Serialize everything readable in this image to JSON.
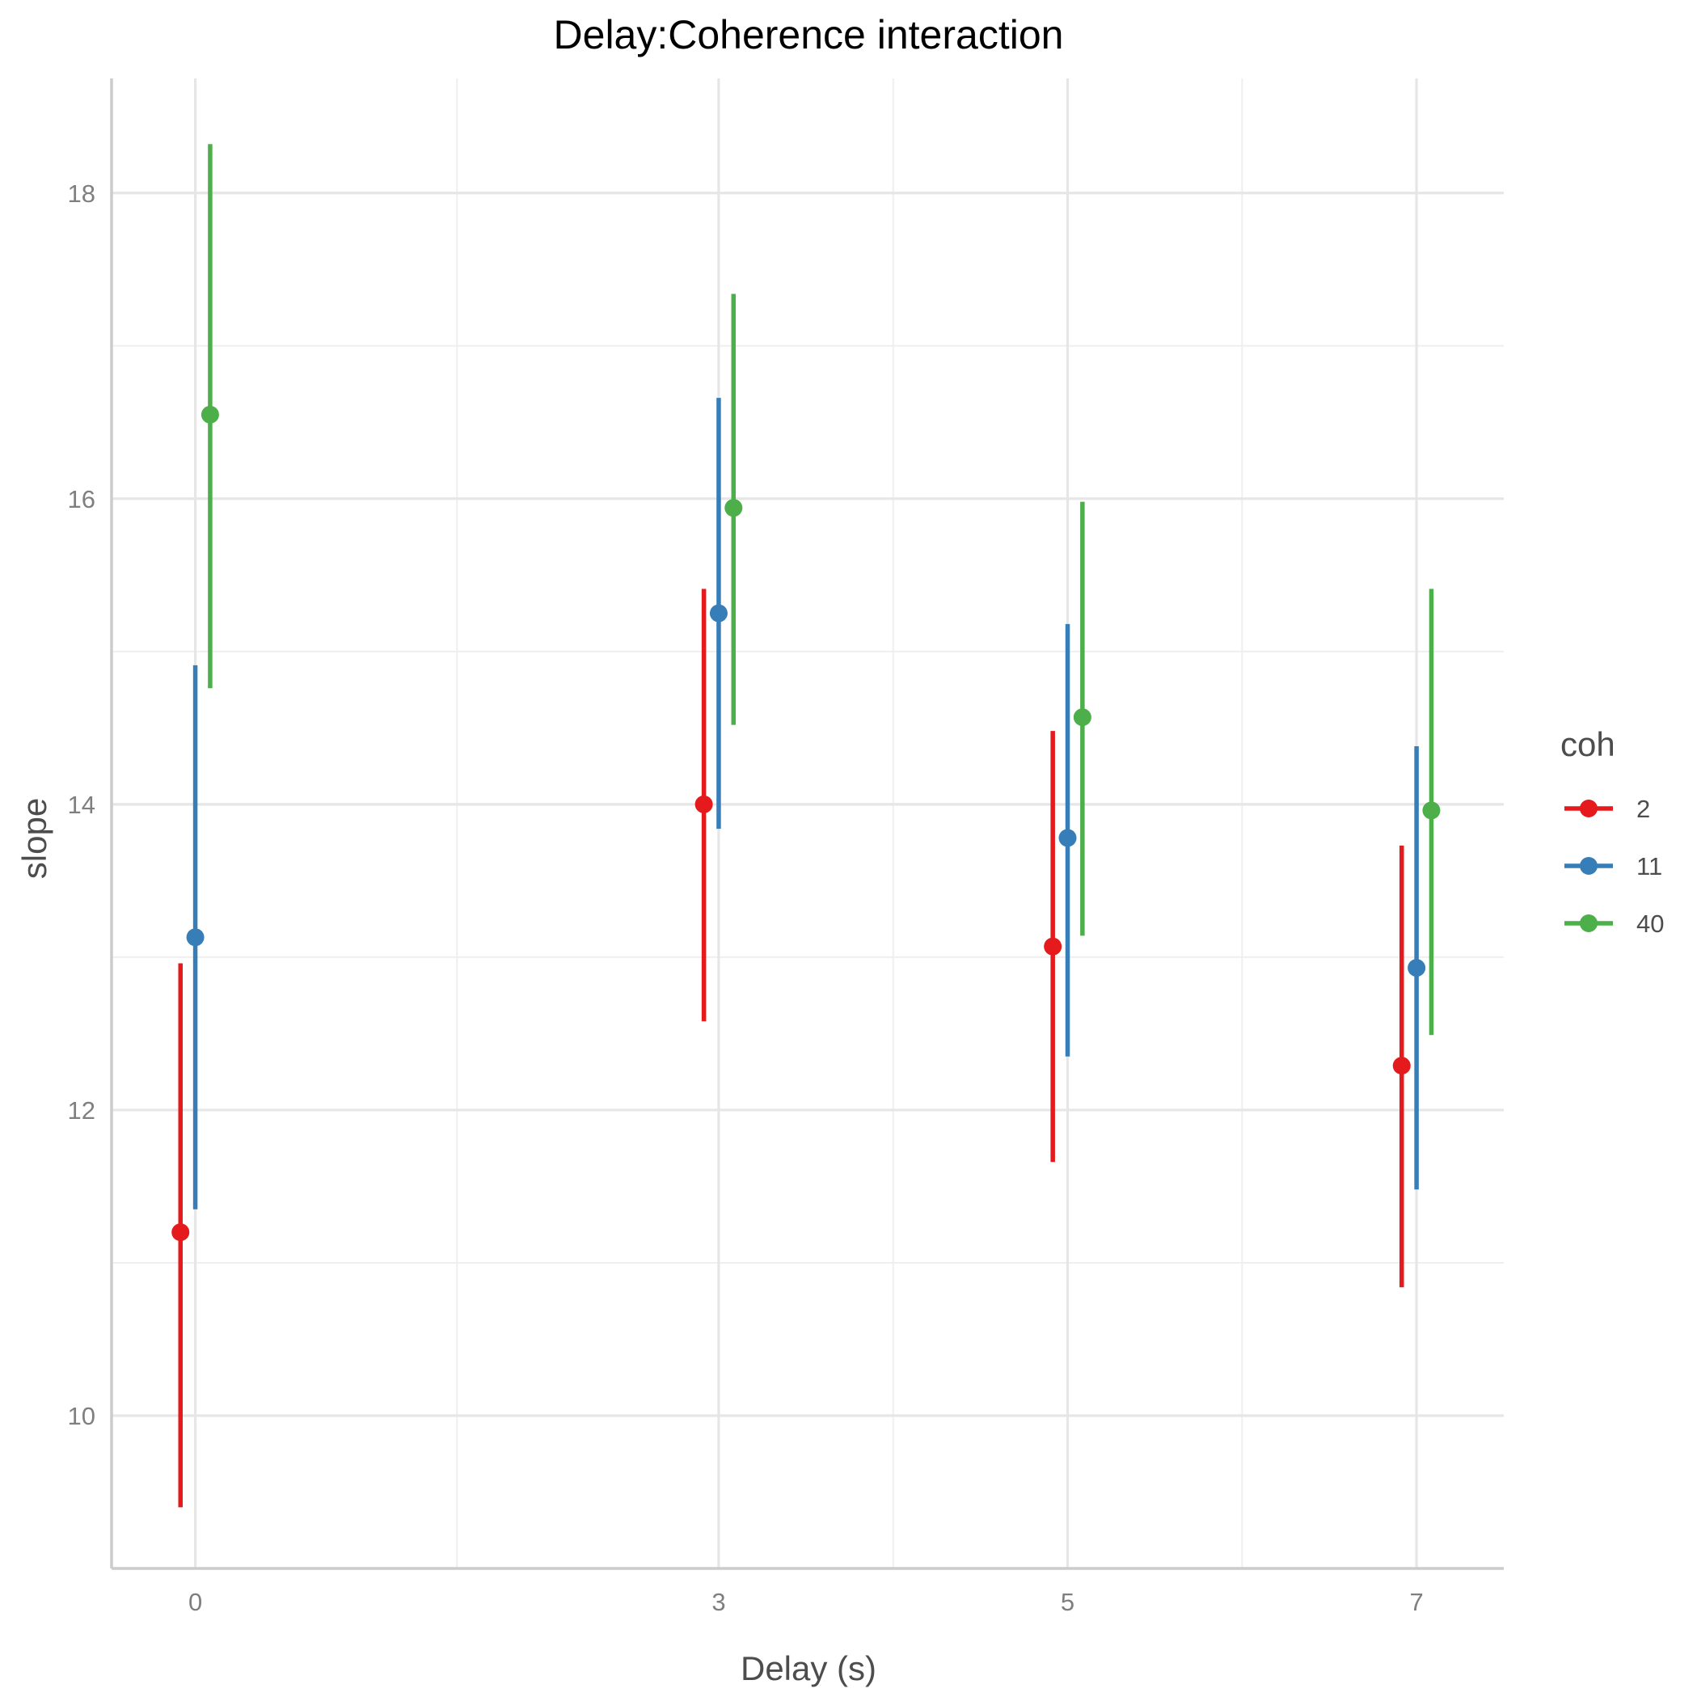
{
  "chart_data": {
    "type": "errorbar",
    "title": "Delay:Coherence interaction",
    "xlabel": "Delay (s)",
    "ylabel": "slope",
    "x_ticks": [
      0,
      3,
      5,
      7
    ],
    "y_ticks": [
      10,
      12,
      14,
      16,
      18
    ],
    "xlim": [
      -0.48,
      7.5
    ],
    "ylim": [
      9.0,
      18.75
    ],
    "grid": true,
    "dodge": 0.085,
    "legend": {
      "title": "coh",
      "position": "right"
    },
    "series": [
      {
        "name": "2",
        "color": "#e41a1c",
        "points": [
          {
            "x": 0,
            "y": 11.2,
            "ymin": 9.4,
            "ymax": 12.96
          },
          {
            "x": 3,
            "y": 14.0,
            "ymin": 12.58,
            "ymax": 15.41
          },
          {
            "x": 5,
            "y": 13.07,
            "ymin": 11.66,
            "ymax": 14.48
          },
          {
            "x": 7,
            "y": 12.29,
            "ymin": 10.84,
            "ymax": 13.73
          }
        ]
      },
      {
        "name": "11",
        "color": "#377eb8",
        "points": [
          {
            "x": 0,
            "y": 13.13,
            "ymin": 11.35,
            "ymax": 14.91
          },
          {
            "x": 3,
            "y": 15.25,
            "ymin": 13.84,
            "ymax": 16.66
          },
          {
            "x": 5,
            "y": 13.78,
            "ymin": 12.35,
            "ymax": 15.18
          },
          {
            "x": 7,
            "y": 12.93,
            "ymin": 11.48,
            "ymax": 14.38
          }
        ]
      },
      {
        "name": "40",
        "color": "#4daf4a",
        "points": [
          {
            "x": 0,
            "y": 16.55,
            "ymin": 14.76,
            "ymax": 18.32
          },
          {
            "x": 3,
            "y": 15.94,
            "ymin": 14.52,
            "ymax": 17.34
          },
          {
            "x": 5,
            "y": 14.57,
            "ymin": 13.14,
            "ymax": 15.98
          },
          {
            "x": 7,
            "y": 13.96,
            "ymin": 12.49,
            "ymax": 15.41
          }
        ]
      }
    ]
  }
}
